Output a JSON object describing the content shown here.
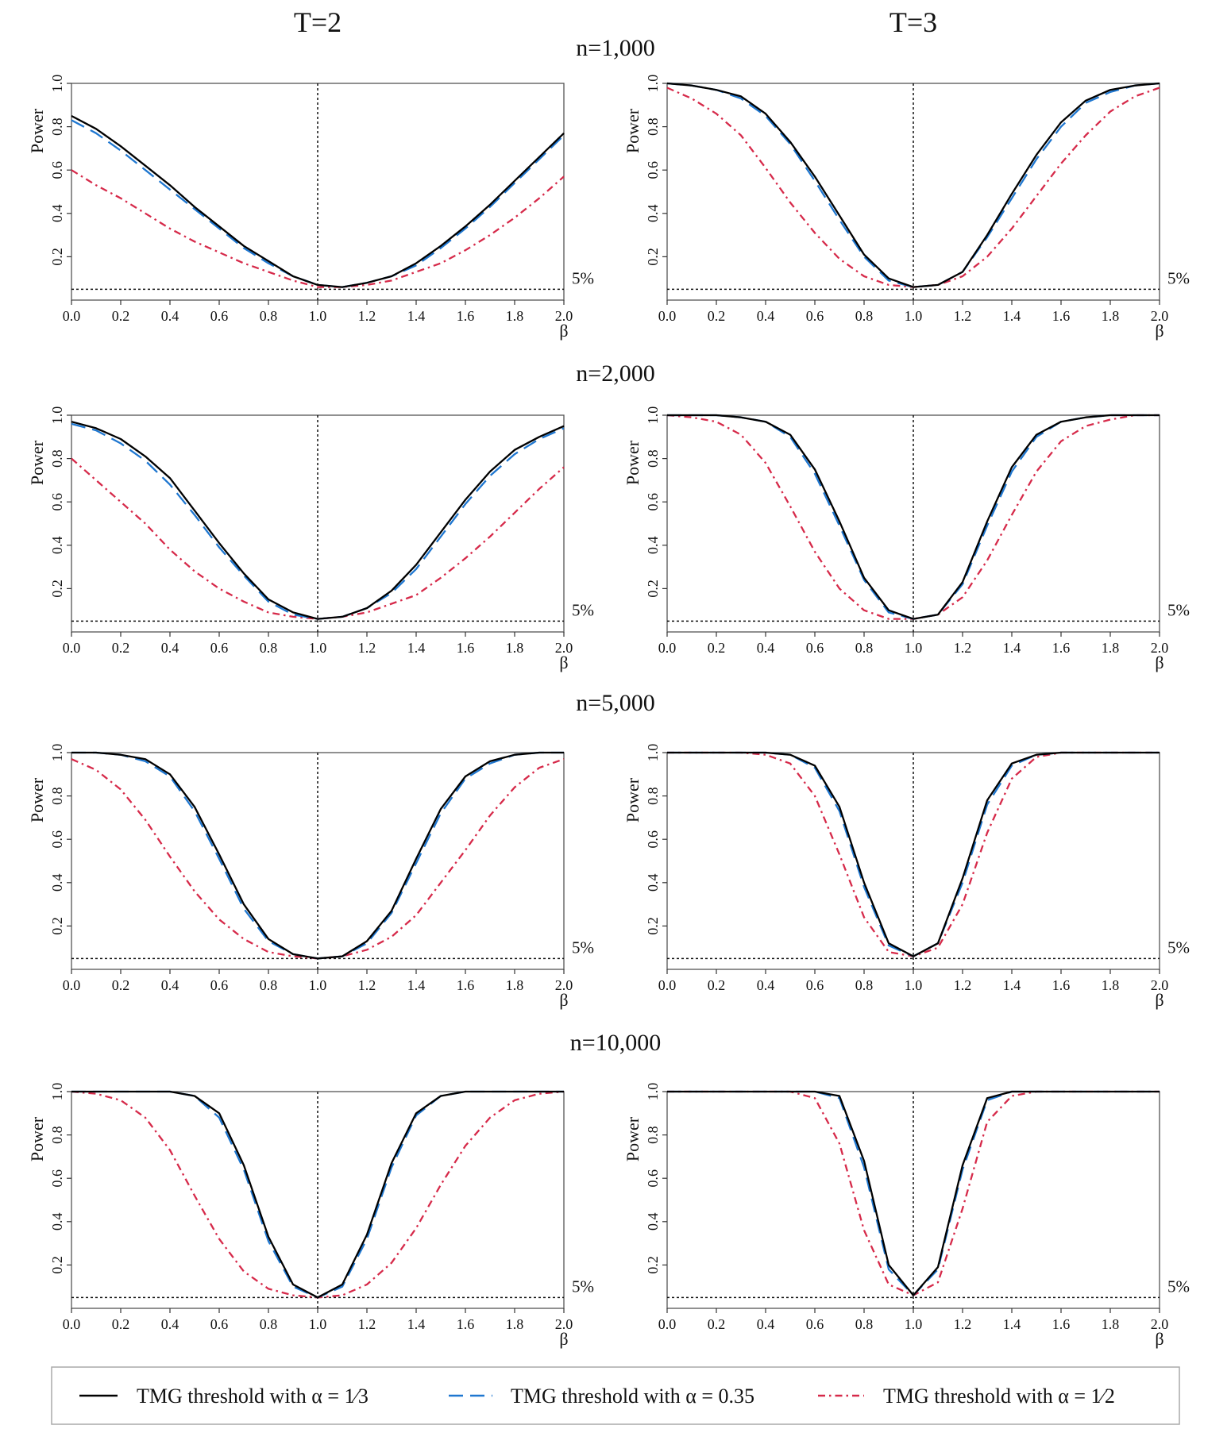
{
  "column_titles": [
    "T=2",
    "T=3"
  ],
  "row_titles": [
    "n=1,000",
    "n=2,000",
    "n=5,000",
    "n=10,000"
  ],
  "legend": [
    {
      "label": "TMG threshold with α = 1⁄3",
      "color": "#000000",
      "style": "solid"
    },
    {
      "label": "TMG threshold with α = 0.35",
      "color": "#1f77d0",
      "style": "dashed"
    },
    {
      "label": "TMG threshold with α = 1⁄2",
      "color": "#d62a4a",
      "style": "dashdot"
    }
  ],
  "chart_data": [
    {
      "type": "line",
      "ylabel": "Power",
      "xlabel": "β",
      "xlim": [
        0,
        2
      ],
      "ylim": [
        0,
        1.0
      ],
      "x_ticks": [
        "0.0",
        "0.2",
        "0.4",
        "0.6",
        "0.8",
        "1.0",
        "1.2",
        "1.4",
        "1.6",
        "1.8",
        "2.0"
      ],
      "y_ticks": [
        "0.2",
        "0.4",
        "0.6",
        "0.8",
        "1.0"
      ],
      "reference_y": 0.05,
      "reference_x": 1.0,
      "reference_label": "5%",
      "x": [
        0.0,
        0.1,
        0.2,
        0.3,
        0.4,
        0.5,
        0.6,
        0.7,
        0.8,
        0.9,
        1.0,
        1.1,
        1.2,
        1.3,
        1.4,
        1.5,
        1.6,
        1.7,
        1.8,
        1.9,
        2.0
      ],
      "series": [
        {
          "name": "TMG threshold with α = 1/3",
          "values": [
            0.85,
            0.79,
            0.71,
            0.62,
            0.53,
            0.43,
            0.34,
            0.25,
            0.18,
            0.11,
            0.07,
            0.06,
            0.08,
            0.11,
            0.17,
            0.25,
            0.34,
            0.44,
            0.55,
            0.66,
            0.77
          ]
        },
        {
          "name": "TMG threshold with α = 0.35",
          "values": [
            0.83,
            0.77,
            0.69,
            0.6,
            0.51,
            0.42,
            0.33,
            0.24,
            0.17,
            0.11,
            0.07,
            0.06,
            0.08,
            0.11,
            0.16,
            0.24,
            0.33,
            0.43,
            0.54,
            0.65,
            0.76
          ]
        },
        {
          "name": "TMG threshold with α = 1/2",
          "values": [
            0.6,
            0.53,
            0.47,
            0.4,
            0.33,
            0.27,
            0.22,
            0.17,
            0.13,
            0.09,
            0.06,
            0.06,
            0.07,
            0.09,
            0.13,
            0.17,
            0.23,
            0.3,
            0.38,
            0.47,
            0.57
          ]
        }
      ]
    },
    {
      "type": "line",
      "ylabel": "Power",
      "xlabel": "β",
      "xlim": [
        0,
        2
      ],
      "ylim": [
        0,
        1.0
      ],
      "x_ticks": [
        "0.0",
        "0.2",
        "0.4",
        "0.6",
        "0.8",
        "1.0",
        "1.2",
        "1.4",
        "1.6",
        "1.8",
        "2.0"
      ],
      "y_ticks": [
        "0.2",
        "0.4",
        "0.6",
        "0.8",
        "1.0"
      ],
      "reference_y": 0.05,
      "reference_x": 1.0,
      "reference_label": "5%",
      "x": [
        0.0,
        0.1,
        0.2,
        0.3,
        0.4,
        0.5,
        0.6,
        0.7,
        0.8,
        0.9,
        1.0,
        1.1,
        1.2,
        1.3,
        1.4,
        1.5,
        1.6,
        1.7,
        1.8,
        1.9,
        2.0
      ],
      "series": [
        {
          "name": "TMG threshold with α = 1/3",
          "values": [
            1.0,
            0.99,
            0.97,
            0.94,
            0.86,
            0.73,
            0.57,
            0.39,
            0.21,
            0.1,
            0.06,
            0.07,
            0.13,
            0.3,
            0.49,
            0.67,
            0.82,
            0.92,
            0.97,
            0.99,
            1.0
          ]
        },
        {
          "name": "TMG threshold with α = 0.35",
          "values": [
            1.0,
            0.99,
            0.97,
            0.93,
            0.85,
            0.72,
            0.55,
            0.37,
            0.2,
            0.09,
            0.06,
            0.07,
            0.13,
            0.29,
            0.47,
            0.65,
            0.8,
            0.91,
            0.96,
            0.99,
            1.0
          ]
        },
        {
          "name": "TMG threshold with α = 1/2",
          "values": [
            0.98,
            0.93,
            0.86,
            0.76,
            0.61,
            0.45,
            0.31,
            0.19,
            0.11,
            0.07,
            0.06,
            0.07,
            0.11,
            0.2,
            0.33,
            0.48,
            0.63,
            0.76,
            0.87,
            0.94,
            0.98
          ]
        }
      ]
    },
    {
      "type": "line",
      "ylabel": "Power",
      "xlabel": "β",
      "xlim": [
        0,
        2
      ],
      "ylim": [
        0,
        1.0
      ],
      "x_ticks": [
        "0.0",
        "0.2",
        "0.4",
        "0.6",
        "0.8",
        "1.0",
        "1.2",
        "1.4",
        "1.6",
        "1.8",
        "2.0"
      ],
      "y_ticks": [
        "0.2",
        "0.4",
        "0.6",
        "0.8",
        "1.0"
      ],
      "reference_y": 0.05,
      "reference_x": 1.0,
      "reference_label": "5%",
      "x": [
        0.0,
        0.1,
        0.2,
        0.3,
        0.4,
        0.5,
        0.6,
        0.7,
        0.8,
        0.9,
        1.0,
        1.1,
        1.2,
        1.3,
        1.4,
        1.5,
        1.6,
        1.7,
        1.8,
        1.9,
        2.0
      ],
      "series": [
        {
          "name": "TMG threshold with α = 1/3",
          "values": [
            0.97,
            0.94,
            0.89,
            0.81,
            0.71,
            0.56,
            0.41,
            0.27,
            0.15,
            0.09,
            0.06,
            0.07,
            0.11,
            0.19,
            0.31,
            0.46,
            0.61,
            0.74,
            0.84,
            0.9,
            0.95
          ]
        },
        {
          "name": "TMG threshold with α = 0.35",
          "values": [
            0.96,
            0.93,
            0.87,
            0.79,
            0.68,
            0.54,
            0.39,
            0.26,
            0.14,
            0.08,
            0.06,
            0.07,
            0.11,
            0.18,
            0.29,
            0.44,
            0.59,
            0.72,
            0.82,
            0.89,
            0.94
          ]
        },
        {
          "name": "TMG threshold with α = 1/2",
          "values": [
            0.8,
            0.7,
            0.6,
            0.5,
            0.38,
            0.28,
            0.2,
            0.14,
            0.09,
            0.07,
            0.06,
            0.07,
            0.09,
            0.13,
            0.17,
            0.25,
            0.34,
            0.44,
            0.55,
            0.66,
            0.76
          ]
        }
      ]
    },
    {
      "type": "line",
      "ylabel": "Power",
      "xlabel": "β",
      "xlim": [
        0,
        2
      ],
      "ylim": [
        0,
        1.0
      ],
      "x_ticks": [
        "0.0",
        "0.2",
        "0.4",
        "0.6",
        "0.8",
        "1.0",
        "1.2",
        "1.4",
        "1.6",
        "1.8",
        "2.0"
      ],
      "y_ticks": [
        "0.2",
        "0.4",
        "0.6",
        "0.8",
        "1.0"
      ],
      "reference_y": 0.05,
      "reference_x": 1.0,
      "reference_label": "5%",
      "x": [
        0.0,
        0.1,
        0.2,
        0.3,
        0.4,
        0.5,
        0.6,
        0.7,
        0.8,
        0.9,
        1.0,
        1.1,
        1.2,
        1.3,
        1.4,
        1.5,
        1.6,
        1.7,
        1.8,
        1.9,
        2.0
      ],
      "series": [
        {
          "name": "TMG threshold with α = 1/3",
          "values": [
            1.0,
            1.0,
            1.0,
            0.99,
            0.97,
            0.91,
            0.75,
            0.51,
            0.25,
            0.1,
            0.06,
            0.08,
            0.23,
            0.51,
            0.76,
            0.91,
            0.97,
            0.99,
            1.0,
            1.0,
            1.0
          ]
        },
        {
          "name": "TMG threshold with α = 0.35",
          "values": [
            1.0,
            1.0,
            1.0,
            0.99,
            0.97,
            0.9,
            0.73,
            0.49,
            0.24,
            0.09,
            0.06,
            0.08,
            0.22,
            0.49,
            0.74,
            0.9,
            0.97,
            0.99,
            1.0,
            1.0,
            1.0
          ]
        },
        {
          "name": "TMG threshold with α = 1/2",
          "values": [
            1.0,
            0.99,
            0.97,
            0.91,
            0.78,
            0.58,
            0.37,
            0.2,
            0.1,
            0.06,
            0.06,
            0.08,
            0.16,
            0.33,
            0.54,
            0.74,
            0.88,
            0.95,
            0.98,
            1.0,
            1.0
          ]
        }
      ]
    },
    {
      "type": "line",
      "ylabel": "Power",
      "xlabel": "β",
      "xlim": [
        0,
        2
      ],
      "ylim": [
        0,
        1.0
      ],
      "x_ticks": [
        "0.0",
        "0.2",
        "0.4",
        "0.6",
        "0.8",
        "1.0",
        "1.2",
        "1.4",
        "1.6",
        "1.8",
        "2.0"
      ],
      "y_ticks": [
        "0.2",
        "0.4",
        "0.6",
        "0.8",
        "1.0"
      ],
      "reference_y": 0.05,
      "reference_x": 1.0,
      "reference_label": "5%",
      "x": [
        0.0,
        0.1,
        0.2,
        0.3,
        0.4,
        0.5,
        0.6,
        0.7,
        0.8,
        0.9,
        1.0,
        1.1,
        1.2,
        1.3,
        1.4,
        1.5,
        1.6,
        1.7,
        1.8,
        1.9,
        2.0
      ],
      "series": [
        {
          "name": "TMG threshold with α = 1/3",
          "values": [
            1.0,
            1.0,
            0.99,
            0.97,
            0.9,
            0.75,
            0.53,
            0.3,
            0.14,
            0.07,
            0.05,
            0.06,
            0.13,
            0.27,
            0.51,
            0.74,
            0.89,
            0.96,
            0.99,
            1.0,
            1.0
          ]
        },
        {
          "name": "TMG threshold with α = 0.35",
          "values": [
            1.0,
            1.0,
            0.99,
            0.96,
            0.89,
            0.73,
            0.51,
            0.28,
            0.13,
            0.07,
            0.05,
            0.06,
            0.12,
            0.26,
            0.49,
            0.72,
            0.88,
            0.95,
            0.99,
            1.0,
            1.0
          ]
        },
        {
          "name": "TMG threshold with α = 1/2",
          "values": [
            0.97,
            0.92,
            0.83,
            0.69,
            0.52,
            0.36,
            0.23,
            0.14,
            0.08,
            0.06,
            0.05,
            0.06,
            0.09,
            0.15,
            0.25,
            0.4,
            0.55,
            0.71,
            0.84,
            0.93,
            0.97
          ]
        }
      ]
    },
    {
      "type": "line",
      "ylabel": "Power",
      "xlabel": "β",
      "xlim": [
        0,
        2
      ],
      "ylim": [
        0,
        1.0
      ],
      "x_ticks": [
        "0.0",
        "0.2",
        "0.4",
        "0.6",
        "0.8",
        "1.0",
        "1.2",
        "1.4",
        "1.6",
        "1.8",
        "2.0"
      ],
      "y_ticks": [
        "0.2",
        "0.4",
        "0.6",
        "0.8",
        "1.0"
      ],
      "reference_y": 0.05,
      "reference_x": 1.0,
      "reference_label": "5%",
      "x": [
        0.0,
        0.1,
        0.2,
        0.3,
        0.4,
        0.5,
        0.6,
        0.7,
        0.8,
        0.9,
        1.0,
        1.1,
        1.2,
        1.3,
        1.4,
        1.5,
        1.6,
        1.7,
        1.8,
        1.9,
        2.0
      ],
      "series": [
        {
          "name": "TMG threshold with α = 1/3",
          "values": [
            1.0,
            1.0,
            1.0,
            1.0,
            1.0,
            0.99,
            0.94,
            0.75,
            0.4,
            0.12,
            0.06,
            0.12,
            0.42,
            0.78,
            0.95,
            0.99,
            1.0,
            1.0,
            1.0,
            1.0,
            1.0
          ]
        },
        {
          "name": "TMG threshold with α = 0.35",
          "values": [
            1.0,
            1.0,
            1.0,
            1.0,
            1.0,
            0.99,
            0.93,
            0.73,
            0.38,
            0.11,
            0.06,
            0.12,
            0.4,
            0.76,
            0.94,
            0.99,
            1.0,
            1.0,
            1.0,
            1.0,
            1.0
          ]
        },
        {
          "name": "TMG threshold with α = 1/2",
          "values": [
            1.0,
            1.0,
            1.0,
            1.0,
            0.99,
            0.95,
            0.8,
            0.53,
            0.24,
            0.08,
            0.06,
            0.1,
            0.3,
            0.63,
            0.88,
            0.98,
            1.0,
            1.0,
            1.0,
            1.0,
            1.0
          ]
        }
      ]
    },
    {
      "type": "line",
      "ylabel": "Power",
      "xlabel": "β",
      "xlim": [
        0,
        2
      ],
      "ylim": [
        0,
        1.0
      ],
      "x_ticks": [
        "0.0",
        "0.2",
        "0.4",
        "0.6",
        "0.8",
        "1.0",
        "1.2",
        "1.4",
        "1.6",
        "1.8",
        "2.0"
      ],
      "y_ticks": [
        "0.2",
        "0.4",
        "0.6",
        "0.8",
        "1.0"
      ],
      "reference_y": 0.05,
      "reference_x": 1.0,
      "reference_label": "5%",
      "x": [
        0.0,
        0.1,
        0.2,
        0.3,
        0.4,
        0.5,
        0.6,
        0.7,
        0.8,
        0.9,
        1.0,
        1.1,
        1.2,
        1.3,
        1.4,
        1.5,
        1.6,
        1.7,
        1.8,
        1.9,
        2.0
      ],
      "series": [
        {
          "name": "TMG threshold with α = 1/3",
          "values": [
            1.0,
            1.0,
            1.0,
            1.0,
            1.0,
            0.98,
            0.9,
            0.66,
            0.33,
            0.11,
            0.05,
            0.11,
            0.34,
            0.67,
            0.9,
            0.98,
            1.0,
            1.0,
            1.0,
            1.0,
            1.0
          ]
        },
        {
          "name": "TMG threshold with α = 0.35",
          "values": [
            1.0,
            1.0,
            1.0,
            1.0,
            1.0,
            0.98,
            0.88,
            0.64,
            0.31,
            0.1,
            0.05,
            0.1,
            0.32,
            0.65,
            0.89,
            0.98,
            1.0,
            1.0,
            1.0,
            1.0,
            1.0
          ]
        },
        {
          "name": "TMG threshold with α = 1/2",
          "values": [
            1.0,
            0.99,
            0.96,
            0.88,
            0.73,
            0.52,
            0.32,
            0.17,
            0.09,
            0.06,
            0.05,
            0.06,
            0.11,
            0.21,
            0.37,
            0.57,
            0.75,
            0.88,
            0.96,
            0.99,
            1.0
          ]
        }
      ]
    },
    {
      "type": "line",
      "ylabel": "Power",
      "xlabel": "β",
      "xlim": [
        0,
        2
      ],
      "ylim": [
        0,
        1.0
      ],
      "x_ticks": [
        "0.0",
        "0.2",
        "0.4",
        "0.6",
        "0.8",
        "1.0",
        "1.2",
        "1.4",
        "1.6",
        "1.8",
        "2.0"
      ],
      "y_ticks": [
        "0.2",
        "0.4",
        "0.6",
        "0.8",
        "1.0"
      ],
      "reference_y": 0.05,
      "reference_x": 1.0,
      "reference_label": "5%",
      "x": [
        0.0,
        0.1,
        0.2,
        0.3,
        0.4,
        0.5,
        0.6,
        0.7,
        0.8,
        0.9,
        1.0,
        1.1,
        1.2,
        1.3,
        1.4,
        1.5,
        1.6,
        1.7,
        1.8,
        1.9,
        2.0
      ],
      "series": [
        {
          "name": "TMG threshold with α = 1/3",
          "values": [
            1.0,
            1.0,
            1.0,
            1.0,
            1.0,
            1.0,
            1.0,
            0.98,
            0.68,
            0.2,
            0.06,
            0.19,
            0.66,
            0.97,
            1.0,
            1.0,
            1.0,
            1.0,
            1.0,
            1.0,
            1.0
          ]
        },
        {
          "name": "TMG threshold with α = 0.35",
          "values": [
            1.0,
            1.0,
            1.0,
            1.0,
            1.0,
            1.0,
            1.0,
            0.97,
            0.65,
            0.18,
            0.06,
            0.18,
            0.64,
            0.96,
            1.0,
            1.0,
            1.0,
            1.0,
            1.0,
            1.0,
            1.0
          ]
        },
        {
          "name": "TMG threshold with α = 1/2",
          "values": [
            1.0,
            1.0,
            1.0,
            1.0,
            1.0,
            1.0,
            0.97,
            0.76,
            0.36,
            0.11,
            0.06,
            0.12,
            0.46,
            0.86,
            0.98,
            1.0,
            1.0,
            1.0,
            1.0,
            1.0,
            1.0
          ]
        }
      ]
    }
  ]
}
